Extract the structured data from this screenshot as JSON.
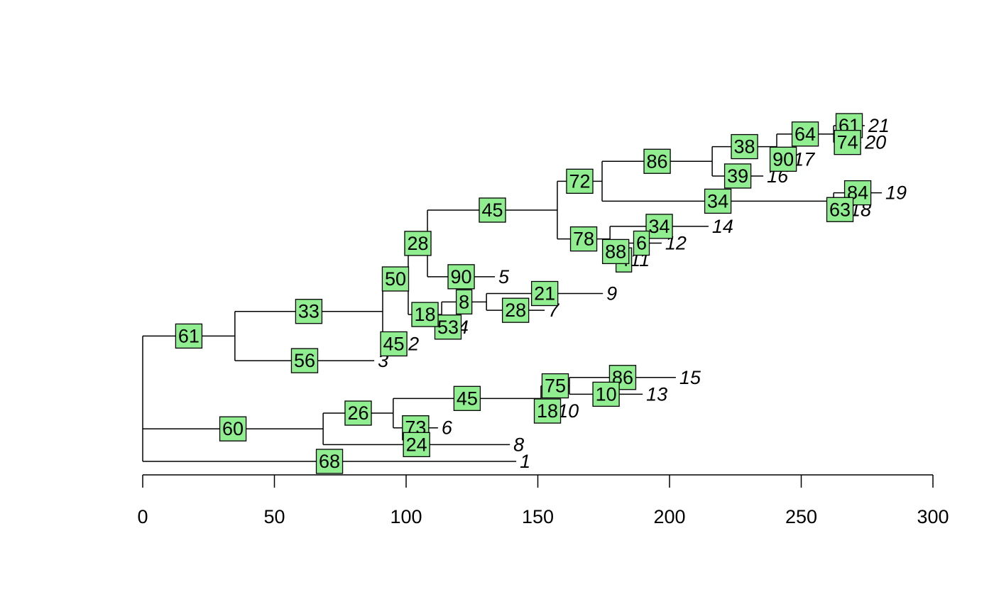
{
  "chart_data": {
    "type": "phylogram",
    "xlim": [
      0,
      300
    ],
    "xticks": [
      0,
      50,
      100,
      150,
      200,
      250,
      300
    ],
    "tree": {
      "x": 0,
      "children": [
        {
          "x": 35.0,
          "edge_label": 61,
          "children": [
            {
              "x": 91.1,
              "edge_label": 33,
              "children": [
                {
                  "x": 100.8,
                  "edge_label": 50,
                  "children": [
                    {
                      "x": 108.1,
                      "edge_label": 28,
                      "children": [
                        {
                          "x": 157.4,
                          "edge_label": 45,
                          "children": [
                            {
                              "x": 174.4,
                              "edge_label": 72,
                              "children": [
                                {
                                  "x": 216.2,
                                  "edge_label": 86,
                                  "children": [
                                    {
                                      "x": 240.7,
                                      "edge_label": 38,
                                      "children": [
                                        {
                                          "x": 262.3,
                                          "edge_label": 64,
                                          "children": [
                                            {
                                              "x": 274.1,
                                              "edge_label": 61,
                                              "tip_label": 21
                                            },
                                            {
                                              "x": 272.8,
                                              "edge_label": 74,
                                              "tip_label": 20
                                            }
                                          ]
                                        },
                                        {
                                          "x": 245.6,
                                          "edge_label": 90,
                                          "tip_label": 17
                                        }
                                      ]
                                    },
                                    {
                                      "x": 235.6,
                                      "edge_label": 39,
                                      "tip_label": 16
                                    }
                                  ]
                                },
                                {
                                  "x": 262.3,
                                  "edge_label": 34,
                                  "children": [
                                    {
                                      "x": 280.6,
                                      "edge_label": 84,
                                      "tip_label": 19
                                    },
                                    {
                                      "x": 267.1,
                                      "edge_label": 63,
                                      "tip_label": 18
                                    }
                                  ]
                                }
                              ]
                            },
                            {
                              "x": 177.4,
                              "edge_label": 78,
                              "children": [
                                {
                                  "x": 214.8,
                                  "edge_label": 34,
                                  "tip_label": 14
                                },
                                {
                                  "x": 181.7,
                                  "edge_label": 88,
                                  "children": [
                                    {
                                      "x": 197.0,
                                      "edge_label": 6,
                                      "tip_label": 12
                                    },
                                    {
                                      "x": 183.6,
                                      "edge_label": 4,
                                      "tip_label": 11
                                    }
                                  ]
                                }
                              ]
                            }
                          ]
                        },
                        {
                          "x": 133.7,
                          "edge_label": 90,
                          "tip_label": 5
                        }
                      ]
                    },
                    {
                      "x": 113.5,
                      "edge_label": 18,
                      "children": [
                        {
                          "x": 130.5,
                          "edge_label": 8,
                          "children": [
                            {
                              "x": 174.7,
                              "edge_label": 21,
                              "tip_label": 9
                            },
                            {
                              "x": 152.6,
                              "edge_label": 28,
                              "tip_label": 7
                            }
                          ]
                        },
                        {
                          "x": 118.3,
                          "edge_label": 53,
                          "tip_label": 4
                        }
                      ]
                    }
                  ]
                },
                {
                  "x": 99.5,
                  "edge_label": 45,
                  "tip_label": 2
                }
              ]
            },
            {
              "x": 87.9,
              "edge_label": 56,
              "tip_label": 3
            }
          ]
        },
        {
          "x": 68.5,
          "edge_label": 60,
          "children": [
            {
              "x": 95.1,
              "edge_label": 26,
              "children": [
                {
                  "x": 151.2,
                  "edge_label": 45,
                  "children": [
                    {
                      "x": 162.0,
                      "edge_label": 75,
                      "children": [
                        {
                          "x": 202.4,
                          "edge_label": 86,
                          "tip_label": 15
                        },
                        {
                          "x": 189.8,
                          "edge_label": 10,
                          "tip_label": 13
                        }
                      ]
                    },
                    {
                      "x": 156.1,
                      "edge_label": 18,
                      "tip_label": 10
                    }
                  ]
                },
                {
                  "x": 112.1,
                  "edge_label": 73,
                  "tip_label": 6
                }
              ]
            },
            {
              "x": 139.4,
              "edge_label": 24,
              "tip_label": 8
            }
          ]
        },
        {
          "x": 141.8,
          "edge_label": 68,
          "tip_label": 1
        }
      ]
    }
  }
}
